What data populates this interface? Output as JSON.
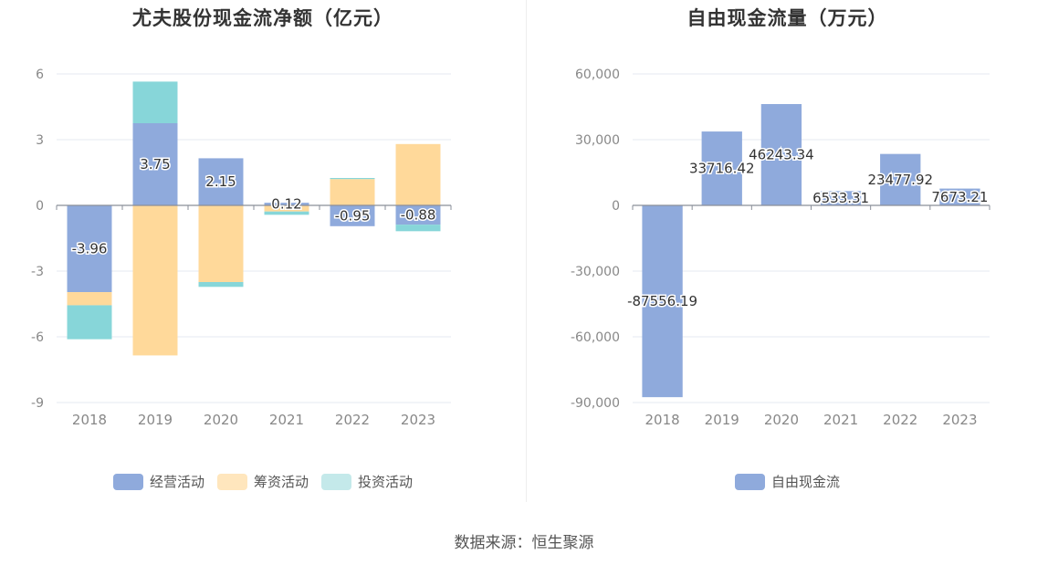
{
  "chart_data": [
    {
      "type": "bar",
      "stacked": true,
      "title": "尤夫股份现金流净额（亿元）",
      "categories": [
        "2018",
        "2019",
        "2020",
        "2021",
        "2022",
        "2023"
      ],
      "ylim": [
        -9,
        6
      ],
      "yticks": [
        6,
        3,
        0,
        -3,
        -6,
        -9
      ],
      "series": [
        {
          "name": "经营活动",
          "color": "#8faadc",
          "values": [
            -3.96,
            3.75,
            2.15,
            0.12,
            -0.95,
            -0.88
          ],
          "labels": [
            "-3.96",
            "3.75",
            "2.15",
            "0.12",
            "-0.95",
            "-0.88"
          ]
        },
        {
          "name": "筹资活动",
          "color": "#ffd99a",
          "values": [
            -0.6,
            -6.85,
            -3.5,
            -0.28,
            1.2,
            2.8
          ]
        },
        {
          "name": "投资活动",
          "color": "#87d6d9",
          "values": [
            -1.55,
            1.9,
            -0.22,
            -0.15,
            0.05,
            -0.3
          ]
        }
      ],
      "legend": [
        {
          "name": "经营活动",
          "color": "#8faadc"
        },
        {
          "name": "筹资活动",
          "color": "#ffe6bd"
        },
        {
          "name": "投资活动",
          "color": "#c4e9ea"
        }
      ]
    },
    {
      "type": "bar",
      "title": "自由现金流量（万元）",
      "categories": [
        "2018",
        "2019",
        "2020",
        "2021",
        "2022",
        "2023"
      ],
      "ylim": [
        -90000,
        60000
      ],
      "yticks": [
        60000,
        30000,
        0,
        -30000,
        -60000,
        -90000
      ],
      "ytick_labels": [
        "60,000",
        "30,000",
        "0",
        "-30,000",
        "-60,000",
        "-90,000"
      ],
      "series": [
        {
          "name": "自由现金流",
          "color": "#8faadc",
          "values": [
            -87556.19,
            33716.42,
            46243.34,
            6533.31,
            23477.92,
            7673.21
          ],
          "labels": [
            "-87556.19",
            "33716.42",
            "46243.34",
            "6533.31",
            "23477.92",
            "7673.21"
          ]
        }
      ],
      "legend": [
        {
          "name": "自由现金流",
          "color": "#8faadc"
        }
      ]
    }
  ],
  "footer": {
    "source": "数据来源：恒生聚源"
  }
}
